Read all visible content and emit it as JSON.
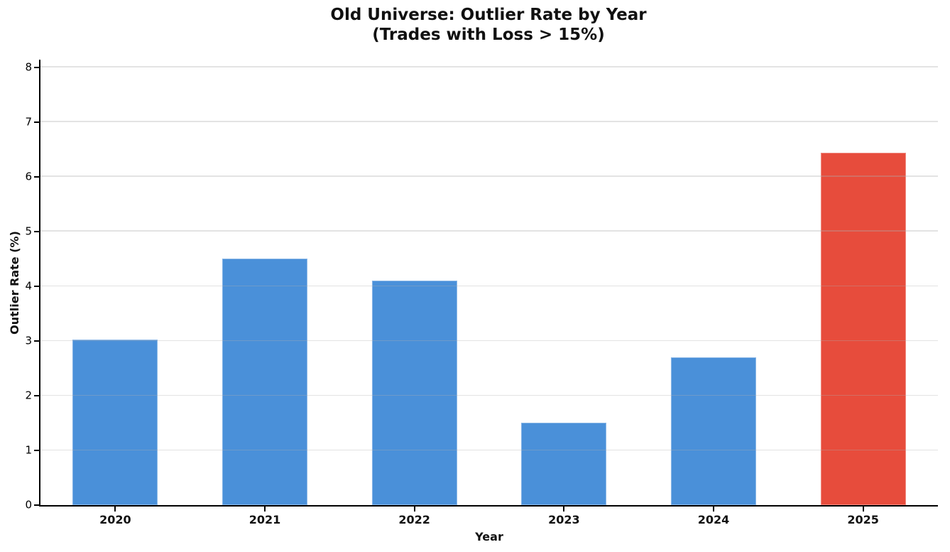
{
  "chart_data": {
    "type": "bar",
    "title": "Old Universe: Outlier Rate by Year (Trades with Loss > 15%)",
    "title_line1": "Old Universe: Outlier Rate by Year",
    "title_line2": "(Trades with Loss > 15%)",
    "xlabel": "Year",
    "ylabel": "Outlier Rate (%)",
    "categories": [
      "2020",
      "2021",
      "2022",
      "2023",
      "2024",
      "2025"
    ],
    "values": [
      3.03,
      4.5,
      4.1,
      1.5,
      2.7,
      6.44
    ],
    "ylim": [
      0,
      8
    ],
    "yticks": [
      0,
      1,
      2,
      3,
      4,
      5,
      6,
      7,
      8
    ],
    "grid": "horizontal-only",
    "legend": "none",
    "highlight_index": 5,
    "colors": {
      "bar_default": "#4a90d9",
      "bar_highlight": "#e74c3c",
      "gridline": "#b0b0b0",
      "axis": "#000000",
      "text": "#111111"
    },
    "layout_hints": {
      "bar_width_fraction_of_slot": 0.57,
      "y_axis_top_value_visual": 8.14
    }
  }
}
